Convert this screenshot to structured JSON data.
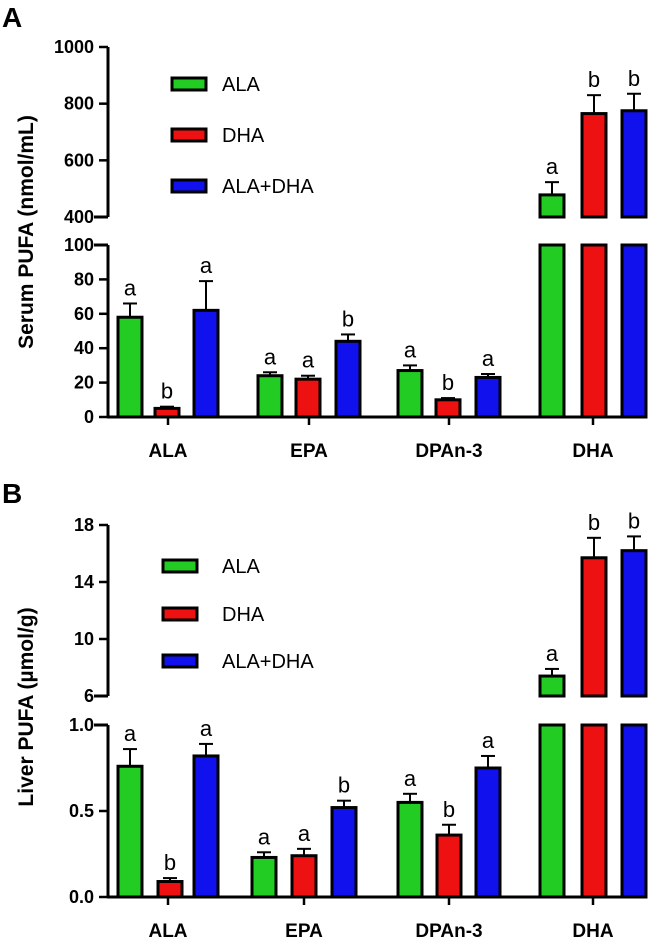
{
  "chart_data": [
    {
      "panel": "A",
      "type": "bar",
      "ylabel": "Serum PUFA (nmol/mL)",
      "categories": [
        "ALA",
        "EPA",
        "DPAn-3",
        "DHA"
      ],
      "axis_lower": {
        "ylim": [
          0,
          100
        ],
        "ticks": [
          "0",
          "20",
          "40",
          "60",
          "80",
          "100"
        ]
      },
      "axis_upper": {
        "ylim": [
          400,
          1000
        ],
        "ticks": [
          "400",
          "600",
          "800",
          "1000"
        ]
      },
      "series": [
        {
          "name": "ALA",
          "color": "#22cc22",
          "values": [
            58,
            24,
            27,
            478
          ],
          "errors": [
            8,
            2,
            3,
            45
          ],
          "letters": [
            "a",
            "a",
            "a",
            "a"
          ]
        },
        {
          "name": "DHA",
          "color": "#ee1111",
          "values": [
            5,
            22,
            10,
            765
          ],
          "errors": [
            1,
            2,
            1,
            65
          ],
          "letters": [
            "b",
            "a",
            "b",
            "b"
          ]
        },
        {
          "name": "ALA+DHA",
          "color": "#1111ee",
          "values": [
            62,
            44,
            23,
            775
          ],
          "errors": [
            17,
            4,
            2,
            60
          ],
          "letters": [
            "a",
            "b",
            "a",
            "b"
          ]
        }
      ]
    },
    {
      "panel": "B",
      "type": "bar",
      "ylabel": "Liver PUFA (µmol/g)",
      "categories": [
        "ALA",
        "EPA",
        "DPAn-3",
        "DHA"
      ],
      "axis_lower": {
        "ylim": [
          0,
          1.0
        ],
        "ticks": [
          "0.0",
          "0.5",
          "1.0"
        ]
      },
      "axis_upper": {
        "ylim": [
          6,
          18
        ],
        "ticks": [
          "6",
          "10",
          "14",
          "18"
        ]
      },
      "series": [
        {
          "name": "ALA",
          "color": "#22cc22",
          "values": [
            0.76,
            0.23,
            0.55,
            7.4
          ],
          "errors": [
            0.1,
            0.03,
            0.05,
            0.5
          ],
          "letters": [
            "a",
            "a",
            "a",
            "a"
          ]
        },
        {
          "name": "DHA",
          "color": "#ee1111",
          "values": [
            0.09,
            0.24,
            0.36,
            15.7
          ],
          "errors": [
            0.02,
            0.04,
            0.06,
            1.4
          ],
          "letters": [
            "b",
            "a",
            "b",
            "b"
          ]
        },
        {
          "name": "ALA+DHA",
          "color": "#1111ee",
          "values": [
            0.82,
            0.52,
            0.75,
            16.2
          ],
          "errors": [
            0.07,
            0.04,
            0.07,
            1.0
          ],
          "letters": [
            "a",
            "b",
            "a",
            "b"
          ]
        }
      ]
    }
  ]
}
